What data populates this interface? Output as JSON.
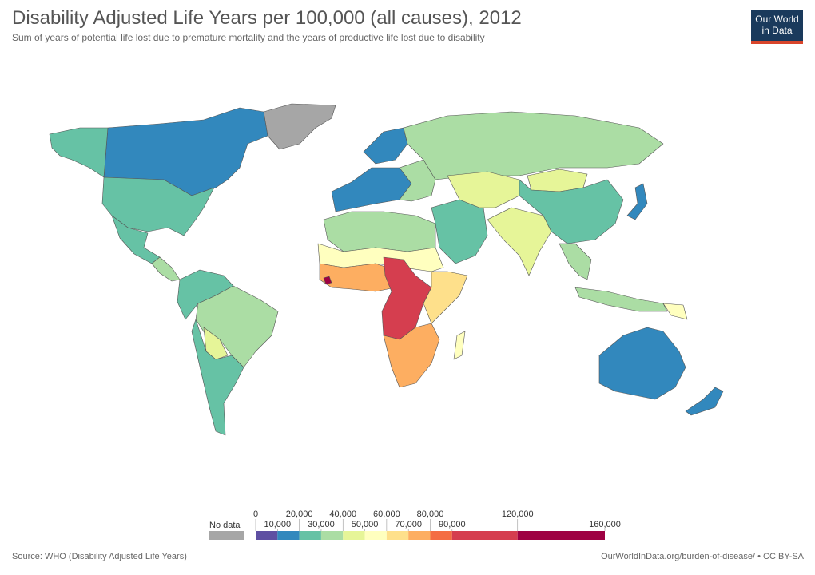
{
  "header": {
    "title": "Disability Adjusted Life Years per 100,000 (all causes), 2012",
    "subtitle": "Sum of years of potential life lost due to premature mortality and the years of productive life lost due to disability"
  },
  "logo": {
    "line1": "Our World",
    "line2": "in Data",
    "bg_color": "#1a3a5c",
    "accent_color": "#d9452b"
  },
  "legend": {
    "no_data_label": "No data",
    "no_data_color": "#a6a6a6",
    "bins": [
      {
        "from": 0,
        "to": 10000,
        "color": "#5e4fa2"
      },
      {
        "from": 10000,
        "to": 20000,
        "color": "#3288bd"
      },
      {
        "from": 20000,
        "to": 30000,
        "color": "#66c2a5"
      },
      {
        "from": 30000,
        "to": 40000,
        "color": "#abdda4"
      },
      {
        "from": 40000,
        "to": 50000,
        "color": "#e6f598"
      },
      {
        "from": 50000,
        "to": 60000,
        "color": "#ffffbf"
      },
      {
        "from": 60000,
        "to": 70000,
        "color": "#fee08b"
      },
      {
        "from": 70000,
        "to": 80000,
        "color": "#fdae61"
      },
      {
        "from": 80000,
        "to": 90000,
        "color": "#f46d43"
      },
      {
        "from": 90000,
        "to": 120000,
        "color": "#d53e4f"
      },
      {
        "from": 120000,
        "to": 160000,
        "color": "#9e0142"
      }
    ],
    "tick_labels_top": [
      "0",
      "20,000",
      "40,000",
      "60,000",
      "80,000",
      "120,000"
    ],
    "tick_labels_bottom": [
      "10,000",
      "30,000",
      "50,000",
      "70,000",
      "90,000",
      "160,000"
    ]
  },
  "footer": {
    "source": "Source: WHO (Disability Adjusted Life Years)",
    "license": "OurWorldInData.org/burden-of-disease/ • CC BY-SA"
  },
  "regions": [
    {
      "name": "greenland",
      "color": "#a6a6a6"
    },
    {
      "name": "canada",
      "color": "#3288bd"
    },
    {
      "name": "alaska",
      "color": "#66c2a5"
    },
    {
      "name": "usa",
      "color": "#66c2a5"
    },
    {
      "name": "mexico",
      "color": "#66c2a5"
    },
    {
      "name": "central-america",
      "color": "#abdda4"
    },
    {
      "name": "colombia-venezuela",
      "color": "#66c2a5"
    },
    {
      "name": "brazil",
      "color": "#abdda4"
    },
    {
      "name": "bolivia",
      "color": "#e6f598"
    },
    {
      "name": "argentina-chile",
      "color": "#66c2a5"
    },
    {
      "name": "western-europe",
      "color": "#3288bd"
    },
    {
      "name": "scandinavia",
      "color": "#3288bd"
    },
    {
      "name": "eastern-europe",
      "color": "#abdda4"
    },
    {
      "name": "russia",
      "color": "#abdda4"
    },
    {
      "name": "north-africa",
      "color": "#abdda4"
    },
    {
      "name": "west-africa",
      "color": "#fdae61"
    },
    {
      "name": "sahel",
      "color": "#ffffbf"
    },
    {
      "name": "central-africa",
      "color": "#d53e4f"
    },
    {
      "name": "east-africa",
      "color": "#fee08b"
    },
    {
      "name": "southern-africa",
      "color": "#fdae61"
    },
    {
      "name": "sierra-leone",
      "color": "#9e0142"
    },
    {
      "name": "middle-east",
      "color": "#66c2a5"
    },
    {
      "name": "central-asia",
      "color": "#e6f598"
    },
    {
      "name": "india",
      "color": "#e6f598"
    },
    {
      "name": "china",
      "color": "#66c2a5"
    },
    {
      "name": "mongolia",
      "color": "#e6f598"
    },
    {
      "name": "southeast-asia",
      "color": "#abdda4"
    },
    {
      "name": "japan",
      "color": "#3288bd"
    },
    {
      "name": "indonesia",
      "color": "#abdda4"
    },
    {
      "name": "australia",
      "color": "#3288bd"
    },
    {
      "name": "new-zealand",
      "color": "#3288bd"
    },
    {
      "name": "madagascar",
      "color": "#ffffbf"
    },
    {
      "name": "papua-new-guinea",
      "color": "#ffffbf"
    }
  ]
}
